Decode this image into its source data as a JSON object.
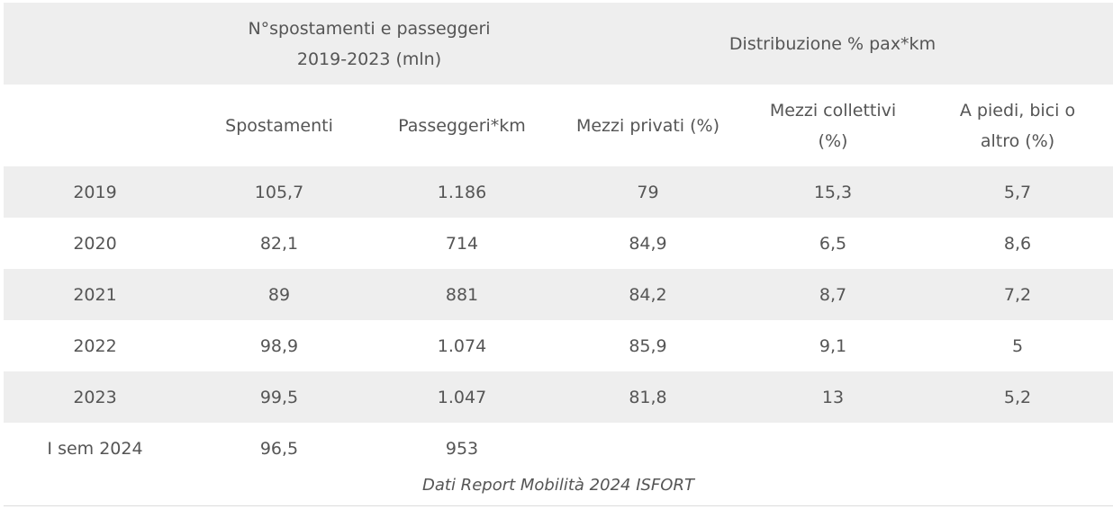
{
  "table": {
    "group_headers": {
      "counts": "N°spostamenti e passeggeri 2019-2023 (mln)",
      "counts_line1": "N°spostamenti e passeggeri",
      "counts_line2": "2019-2023 (mln)",
      "distribution": "Distribuzione % pax*km"
    },
    "columns": [
      "",
      "Spostamenti",
      "Passeggeri*km",
      "Mezzi privati (%)",
      "Mezzi collettivi (%)",
      "A piedi, bici o altro (%)"
    ],
    "column_lines": {
      "mezzi_collettivi_1": "Mezzi collettivi",
      "mezzi_collettivi_2": "(%)",
      "a_piedi_1": "A piedi, bici o",
      "a_piedi_2": "altro (%)"
    },
    "rows": [
      [
        "2019",
        "105,7",
        "1.186",
        "79",
        "15,3",
        "5,7"
      ],
      [
        "2020",
        "82,1",
        "714",
        "84,9",
        "6,5",
        "8,6"
      ],
      [
        "2021",
        "89",
        "881",
        "84,2",
        "8,7",
        "7,2"
      ],
      [
        "2022",
        "98,9",
        "1.074",
        "85,9",
        "9,1",
        "5"
      ],
      [
        "2023",
        "99,5",
        "1.047",
        "81,8",
        "13",
        "5,2"
      ],
      [
        "I sem 2024",
        "96,5",
        "953",
        "",
        "",
        ""
      ]
    ],
    "caption": "Dati Report Mobilità 2024 ISFORT"
  }
}
